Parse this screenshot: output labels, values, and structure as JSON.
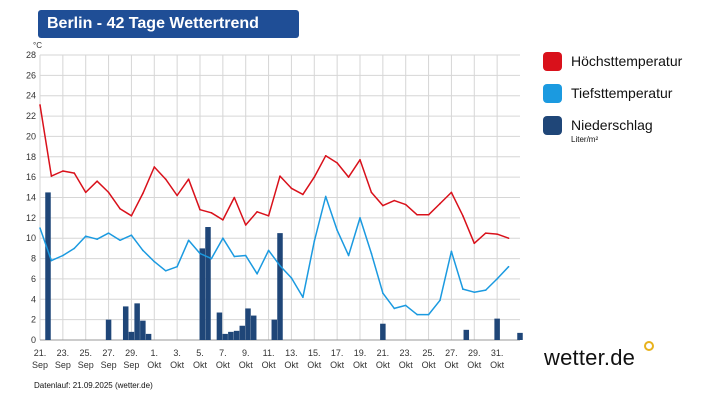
{
  "header": {
    "title": "Berlin - 42 Tage Wettertrend"
  },
  "chart_data": {
    "type": "line",
    "ylabel": "°C",
    "ylim": [
      0,
      28
    ],
    "yticks": [
      0,
      2,
      4,
      6,
      8,
      10,
      12,
      14,
      16,
      18,
      20,
      22,
      24,
      26,
      28
    ],
    "grid": true,
    "legend_position": "right",
    "days": 43,
    "xticks": [
      {
        "day": 0,
        "date": "21.",
        "month": "Sep"
      },
      {
        "day": 2,
        "date": "23.",
        "month": "Sep"
      },
      {
        "day": 4,
        "date": "25.",
        "month": "Sep"
      },
      {
        "day": 6,
        "date": "27.",
        "month": "Sep"
      },
      {
        "day": 8,
        "date": "29.",
        "month": "Sep"
      },
      {
        "day": 10,
        "date": "1.",
        "month": "Okt"
      },
      {
        "day": 12,
        "date": "3.",
        "month": "Okt"
      },
      {
        "day": 14,
        "date": "5.",
        "month": "Okt"
      },
      {
        "day": 16,
        "date": "7.",
        "month": "Okt"
      },
      {
        "day": 18,
        "date": "9.",
        "month": "Okt"
      },
      {
        "day": 20,
        "date": "11.",
        "month": "Okt"
      },
      {
        "day": 22,
        "date": "13.",
        "month": "Okt"
      },
      {
        "day": 24,
        "date": "15.",
        "month": "Okt"
      },
      {
        "day": 26,
        "date": "17.",
        "month": "Okt"
      },
      {
        "day": 28,
        "date": "19.",
        "month": "Okt"
      },
      {
        "day": 30,
        "date": "21.",
        "month": "Okt"
      },
      {
        "day": 32,
        "date": "23.",
        "month": "Okt"
      },
      {
        "day": 34,
        "date": "25.",
        "month": "Okt"
      },
      {
        "day": 36,
        "date": "27.",
        "month": "Okt"
      },
      {
        "day": 38,
        "date": "29.",
        "month": "Okt"
      },
      {
        "day": 40,
        "date": "31.",
        "month": "Okt"
      }
    ],
    "series": [
      {
        "name": "Höchsttemperatur",
        "type": "line",
        "color": "#d9111b",
        "points": [
          [
            0,
            23.1
          ],
          [
            1,
            16.1
          ],
          [
            2,
            16.6
          ],
          [
            3,
            16.4
          ],
          [
            4,
            14.5
          ],
          [
            5,
            15.6
          ],
          [
            6,
            14.5
          ],
          [
            7,
            12.9
          ],
          [
            8,
            12.2
          ],
          [
            9,
            14.4
          ],
          [
            10,
            17.0
          ],
          [
            11,
            15.8
          ],
          [
            12,
            14.2
          ],
          [
            13,
            15.8
          ],
          [
            14,
            12.8
          ],
          [
            15,
            12.5
          ],
          [
            16,
            11.8
          ],
          [
            17,
            14.0
          ],
          [
            18,
            11.3
          ],
          [
            19,
            12.6
          ],
          [
            20,
            12.2
          ],
          [
            21,
            16.1
          ],
          [
            22,
            14.9
          ],
          [
            23,
            14.3
          ],
          [
            24,
            16.0
          ],
          [
            25,
            18.1
          ],
          [
            26,
            17.4
          ],
          [
            27,
            16.0
          ],
          [
            28,
            17.7
          ],
          [
            29,
            14.5
          ],
          [
            30,
            13.2
          ],
          [
            31,
            13.7
          ],
          [
            32,
            13.3
          ],
          [
            33,
            12.3
          ],
          [
            34,
            12.3
          ],
          [
            35,
            13.4
          ],
          [
            36,
            14.5
          ],
          [
            37,
            12.2
          ],
          [
            38,
            9.5
          ],
          [
            39,
            10.5
          ],
          [
            40,
            10.4
          ],
          [
            41,
            10.0
          ]
        ]
      },
      {
        "name": "Tiefsttemperatur",
        "type": "line",
        "color": "#1b9ae0",
        "points": [
          [
            0,
            11.0
          ],
          [
            1,
            7.8
          ],
          [
            2,
            8.3
          ],
          [
            3,
            9.0
          ],
          [
            4,
            10.2
          ],
          [
            5,
            9.9
          ],
          [
            6,
            10.5
          ],
          [
            7,
            9.8
          ],
          [
            8,
            10.3
          ],
          [
            9,
            8.8
          ],
          [
            10,
            7.7
          ],
          [
            11,
            6.8
          ],
          [
            12,
            7.2
          ],
          [
            13,
            9.8
          ],
          [
            14,
            8.5
          ],
          [
            15,
            8.0
          ],
          [
            16,
            10.0
          ],
          [
            17,
            8.2
          ],
          [
            18,
            8.3
          ],
          [
            19,
            6.5
          ],
          [
            20,
            8.8
          ],
          [
            21,
            7.3
          ],
          [
            22,
            6.1
          ],
          [
            23,
            4.2
          ],
          [
            24,
            9.7
          ],
          [
            25,
            14.1
          ],
          [
            26,
            10.8
          ],
          [
            27,
            8.3
          ],
          [
            28,
            12.0
          ],
          [
            29,
            8.5
          ],
          [
            30,
            4.6
          ],
          [
            31,
            3.1
          ],
          [
            32,
            3.4
          ],
          [
            33,
            2.5
          ],
          [
            34,
            2.5
          ],
          [
            35,
            3.9
          ],
          [
            36,
            8.7
          ],
          [
            37,
            5.0
          ],
          [
            38,
            4.7
          ],
          [
            39,
            4.9
          ],
          [
            40,
            6.0
          ],
          [
            41,
            7.2
          ]
        ]
      },
      {
        "name": "Niederschlag",
        "unit": "Liter/m²",
        "type": "bar",
        "color": "#1f4678",
        "points": [
          [
            0.7,
            14.5
          ],
          [
            6.0,
            2.0
          ],
          [
            7.5,
            3.3
          ],
          [
            8.0,
            0.8
          ],
          [
            8.5,
            3.6
          ],
          [
            9.0,
            1.9
          ],
          [
            9.5,
            0.6
          ],
          [
            14.2,
            9.0
          ],
          [
            14.7,
            11.1
          ],
          [
            15.7,
            2.7
          ],
          [
            16.2,
            0.6
          ],
          [
            16.7,
            0.8
          ],
          [
            17.2,
            0.9
          ],
          [
            17.7,
            1.4
          ],
          [
            18.2,
            3.1
          ],
          [
            18.7,
            2.4
          ],
          [
            20.5,
            2.0
          ],
          [
            21.0,
            10.5
          ],
          [
            30.0,
            1.6
          ],
          [
            37.3,
            1.0
          ],
          [
            40.0,
            2.1
          ],
          [
            42.0,
            0.7
          ]
        ]
      }
    ]
  },
  "legend": {
    "items": [
      {
        "label": "Höchsttemperatur",
        "color": "#d9111b"
      },
      {
        "label": "Tiefsttemperatur",
        "color": "#1b9ae0"
      },
      {
        "label": "Niederschlag",
        "color": "#1f4678"
      }
    ],
    "precip_unit": "Liter/m²"
  },
  "brand": {
    "logo_text": "wetter.de",
    "dot_color": "#e8b21c"
  },
  "footer": {
    "text": "Datenlauf: 21.09.2025 (wetter.de)"
  }
}
